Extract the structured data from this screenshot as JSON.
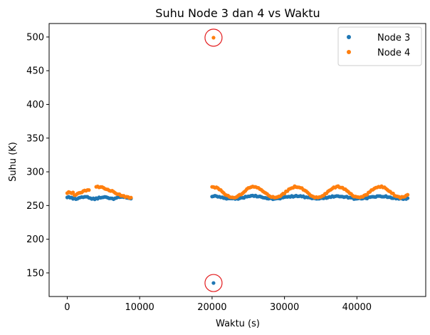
{
  "chart_data": {
    "type": "scatter",
    "title": "Suhu Node 3 dan 4 vs Waktu",
    "xlabel": "Waktu (s)",
    "ylabel": "Suhu (K)",
    "xlim": [
      -2500,
      49500
    ],
    "ylim": [
      115,
      520
    ],
    "xticks": [
      0,
      10000,
      20000,
      30000,
      40000
    ],
    "yticks": [
      150,
      200,
      250,
      300,
      350,
      400,
      450,
      500
    ],
    "grid": false,
    "legend_position": "top-right",
    "series": [
      {
        "name": "Node 3",
        "color": "#1f77b4",
        "segments": [
          {
            "x_start": 0,
            "x_end": 8800,
            "x_step": 200,
            "base": 261.5,
            "amplitude": 1.5,
            "period": 2500
          },
          {
            "x_start": 20000,
            "x_end": 47000,
            "x_step": 200,
            "base": 262,
            "amplitude": 2,
            "period": 5800
          }
        ],
        "outliers": [
          {
            "x": 20200,
            "y": 135
          }
        ]
      },
      {
        "name": "Node 4",
        "color": "#ff7f0e",
        "segments": [
          {
            "x_start": 0,
            "x_end": 3000,
            "x_step": 200,
            "base": 267.5,
            "amplitude": 5.5,
            "period": 3000,
            "phase": "rise"
          },
          {
            "x_start": 4000,
            "x_end": 8800,
            "x_step": 200,
            "base": 270,
            "amplitude": 8,
            "period": 9600,
            "phase": "dip"
          },
          {
            "x_start": 20000,
            "x_end": 47000,
            "x_step": 200,
            "base": 270,
            "amplitude": 8,
            "period": 5800,
            "phase": "wave"
          }
        ],
        "outliers": [
          {
            "x": 20200,
            "y": 499
          }
        ]
      }
    ],
    "annotations": [
      {
        "type": "circle",
        "x": 20200,
        "y": 499,
        "color": "#e31a1c"
      },
      {
        "type": "circle",
        "x": 20200,
        "y": 135,
        "color": "#e31a1c"
      }
    ]
  }
}
